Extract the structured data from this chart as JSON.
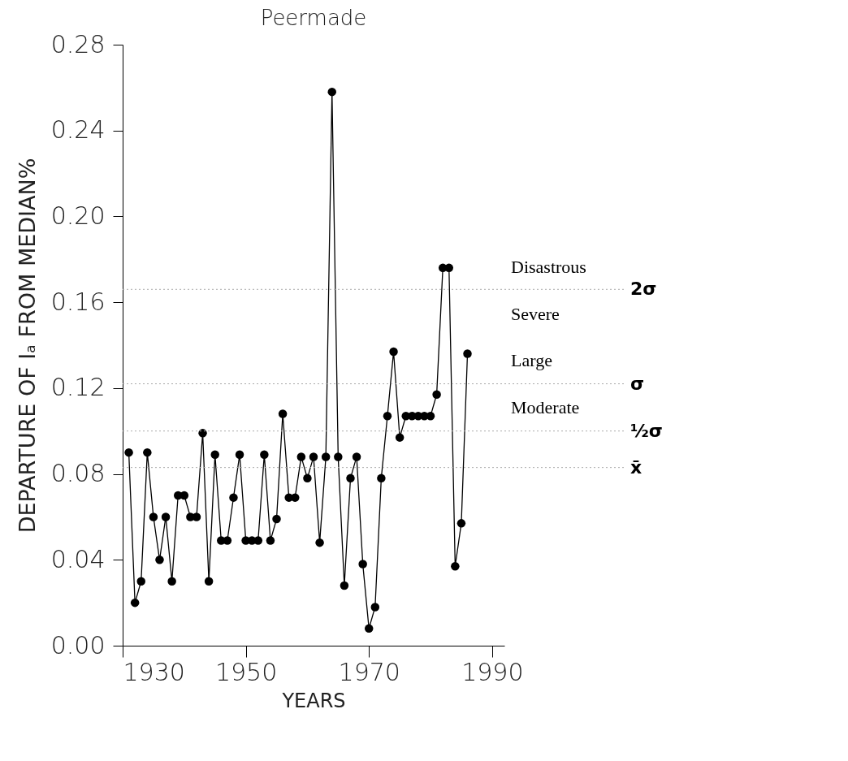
{
  "chart_data": {
    "type": "line",
    "title": "Peermade",
    "xlabel": "YEARS",
    "ylabel": "DEPARTURE OF Iₐ FROM MEDIAN%",
    "x": [
      1931,
      1932,
      1933,
      1934,
      1935,
      1936,
      1937,
      1938,
      1939,
      1940,
      1941,
      1942,
      1943,
      1944,
      1945,
      1946,
      1947,
      1948,
      1949,
      1950,
      1951,
      1952,
      1953,
      1954,
      1955,
      1956,
      1957,
      1958,
      1959,
      1960,
      1961,
      1962,
      1963,
      1964,
      1965,
      1966,
      1967,
      1968,
      1969,
      1970,
      1971,
      1972,
      1973,
      1974,
      1975,
      1976,
      1977,
      1978,
      1979,
      1980,
      1981,
      1982,
      1983,
      1984,
      1985,
      1986
    ],
    "series": [
      {
        "color": "#000000",
        "values": [
          0.09,
          0.02,
          0.03,
          0.09,
          0.06,
          0.04,
          0.06,
          0.03,
          0.07,
          0.07,
          0.06,
          0.06,
          0.099,
          0.03,
          0.089,
          0.049,
          0.049,
          0.069,
          0.089,
          0.049,
          0.049,
          0.049,
          0.089,
          0.049,
          0.059,
          0.108,
          0.069,
          0.069,
          0.088,
          0.078,
          0.088,
          0.048,
          0.088,
          0.258,
          0.088,
          0.028,
          0.078,
          0.088,
          0.038,
          0.008,
          0.018,
          0.078,
          0.107,
          0.137,
          0.097,
          0.107,
          0.107,
          0.107,
          0.107,
          0.107,
          0.117,
          0.176,
          0.176,
          0.037,
          0.057,
          0.136
        ]
      }
    ],
    "marker": "circle",
    "line_style": "solid",
    "grid": false,
    "xlim": [
      1930,
      1992
    ],
    "xticks": [
      1930,
      1950,
      1970,
      1990
    ],
    "ylim": [
      0,
      0.28
    ],
    "yticks": [
      {
        "value": 0,
        "label": "0.00"
      },
      {
        "value": 0.04,
        "label": "0.04"
      },
      {
        "value": 0.08,
        "label": "0.08"
      },
      {
        "value": 0.12,
        "label": "0.12"
      },
      {
        "value": 0.16,
        "label": "0.16"
      },
      {
        "value": 0.2,
        "label": "0.20"
      },
      {
        "value": 0.24,
        "label": "0.24"
      },
      {
        "value": 0.28,
        "label": "0.28"
      }
    ],
    "ref_lines": [
      {
        "axis": "y",
        "value": 0.083,
        "label": "x̄",
        "color": "#aaaaaa",
        "line_style": "dotted"
      },
      {
        "axis": "y",
        "value": 0.1,
        "label": "½σ",
        "color": "#aaaaaa",
        "line_style": "dotted"
      },
      {
        "axis": "y",
        "value": 0.122,
        "label": "σ",
        "color": "#aaaaaa",
        "line_style": "dotted"
      },
      {
        "axis": "y",
        "value": 0.166,
        "label": "2σ",
        "color": "#aaaaaa",
        "line_style": "dotted"
      }
    ],
    "annotations": [
      "Disastrous",
      "Severe",
      "Large",
      "Moderate"
    ]
  }
}
